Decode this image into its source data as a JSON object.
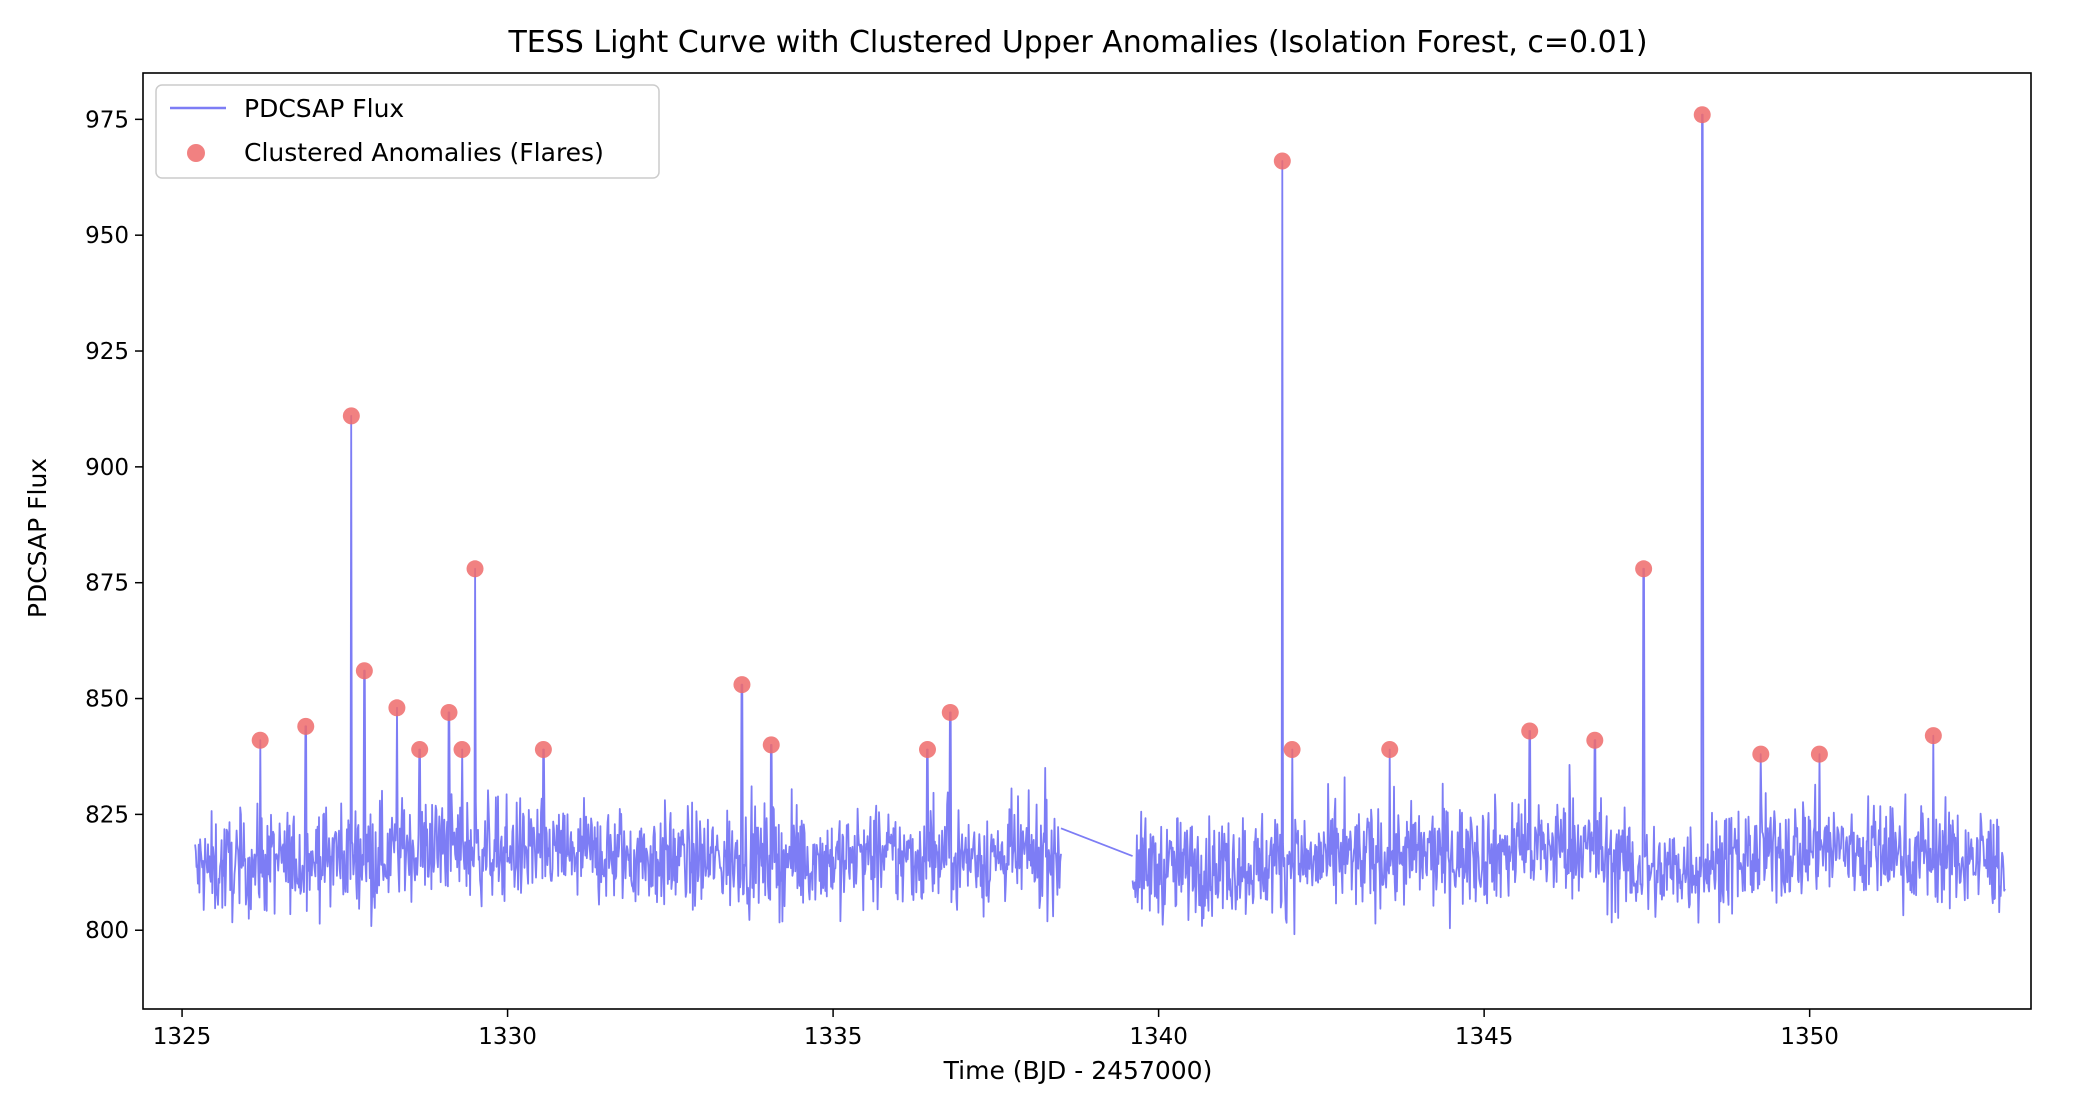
{
  "chart_data": {
    "type": "line",
    "title": "TESS Light Curve with Clustered Upper Anomalies (Isolation Forest, c=0.01)",
    "xlabel": "Time (BJD - 2457000)",
    "ylabel": "PDCSAP Flux",
    "xlim": [
      1324.4,
      1353.4
    ],
    "ylim": [
      783,
      985
    ],
    "xticks": [
      1325,
      1330,
      1335,
      1340,
      1345,
      1350
    ],
    "yticks": [
      800,
      825,
      850,
      875,
      900,
      925,
      950,
      975
    ],
    "legend_position": "top-left",
    "colors": {
      "flux": "#7d7df5",
      "anomaly": "#ef6b6b"
    },
    "series": [
      {
        "name": "PDCSAP Flux",
        "kind": "line",
        "segments": [
          {
            "x_start": 1325.2,
            "x_end": 1338.5,
            "baseline": 815,
            "amplitude": 10,
            "drift": [
              [
                1325.2,
                813
              ],
              [
                1329.0,
                818
              ],
              [
                1333.0,
                815
              ],
              [
                1338.5,
                816
              ]
            ]
          },
          {
            "x_start": 1339.6,
            "x_end": 1353.0,
            "baseline": 815,
            "amplitude": 10,
            "drift": [
              [
                1339.6,
                813
              ],
              [
                1344.0,
                816
              ],
              [
                1346.5,
                818
              ],
              [
                1347.5,
                812
              ],
              [
                1350.0,
                818
              ],
              [
                1353.0,
                815
              ]
            ]
          }
        ],
        "gap_line": [
          [
            1338.5,
            822
          ],
          [
            1339.6,
            816
          ]
        ]
      },
      {
        "name": "Clustered Anomalies (Flares)",
        "kind": "scatter",
        "points": [
          {
            "x": 1326.2,
            "y": 841
          },
          {
            "x": 1326.9,
            "y": 844
          },
          {
            "x": 1327.6,
            "y": 911
          },
          {
            "x": 1327.8,
            "y": 856
          },
          {
            "x": 1328.3,
            "y": 848
          },
          {
            "x": 1328.65,
            "y": 839
          },
          {
            "x": 1329.1,
            "y": 847
          },
          {
            "x": 1329.3,
            "y": 839
          },
          {
            "x": 1329.5,
            "y": 878
          },
          {
            "x": 1330.55,
            "y": 839
          },
          {
            "x": 1333.6,
            "y": 853
          },
          {
            "x": 1334.05,
            "y": 840
          },
          {
            "x": 1336.45,
            "y": 839
          },
          {
            "x": 1336.8,
            "y": 847
          },
          {
            "x": 1341.9,
            "y": 966
          },
          {
            "x": 1342.05,
            "y": 839
          },
          {
            "x": 1343.55,
            "y": 839
          },
          {
            "x": 1345.7,
            "y": 843
          },
          {
            "x": 1346.7,
            "y": 841
          },
          {
            "x": 1347.45,
            "y": 878
          },
          {
            "x": 1348.35,
            "y": 976
          },
          {
            "x": 1349.25,
            "y": 838
          },
          {
            "x": 1350.15,
            "y": 838
          },
          {
            "x": 1351.9,
            "y": 842
          }
        ]
      }
    ]
  }
}
